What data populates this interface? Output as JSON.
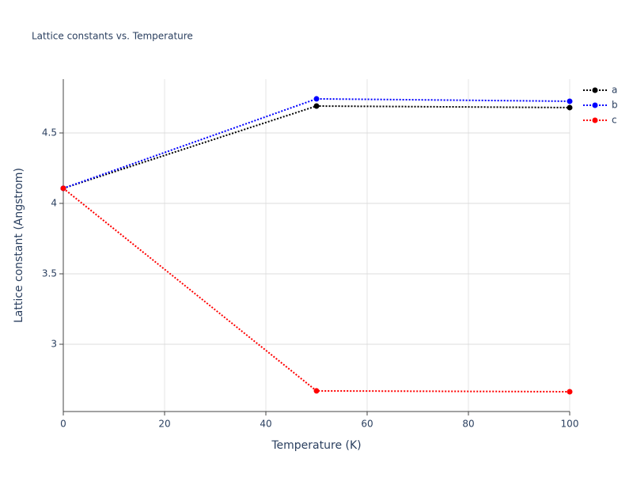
{
  "chart_data": {
    "type": "line",
    "title": "Lattice constants vs. Temperature",
    "x_label": "Temperature (K)",
    "y_label": "Lattice constant (Angstrom)",
    "x": [
      0,
      50,
      100
    ],
    "series": [
      {
        "name": "a",
        "color": "#000000",
        "values": [
          4.107,
          4.691,
          4.68
        ]
      },
      {
        "name": "b",
        "color": "#0000ff",
        "values": [
          4.107,
          4.742,
          4.725
        ]
      },
      {
        "name": "c",
        "color": "#ff0000",
        "values": [
          4.107,
          2.669,
          2.663
        ]
      }
    ],
    "xlim": [
      0,
      100
    ],
    "xticks": [
      0,
      20,
      40,
      60,
      80,
      100
    ],
    "ylim": [
      2.5225,
      4.882
    ],
    "yticks": [
      3,
      3.5,
      4,
      4.5
    ],
    "grid": true,
    "line_style": "dotted",
    "legend": "top-right"
  }
}
